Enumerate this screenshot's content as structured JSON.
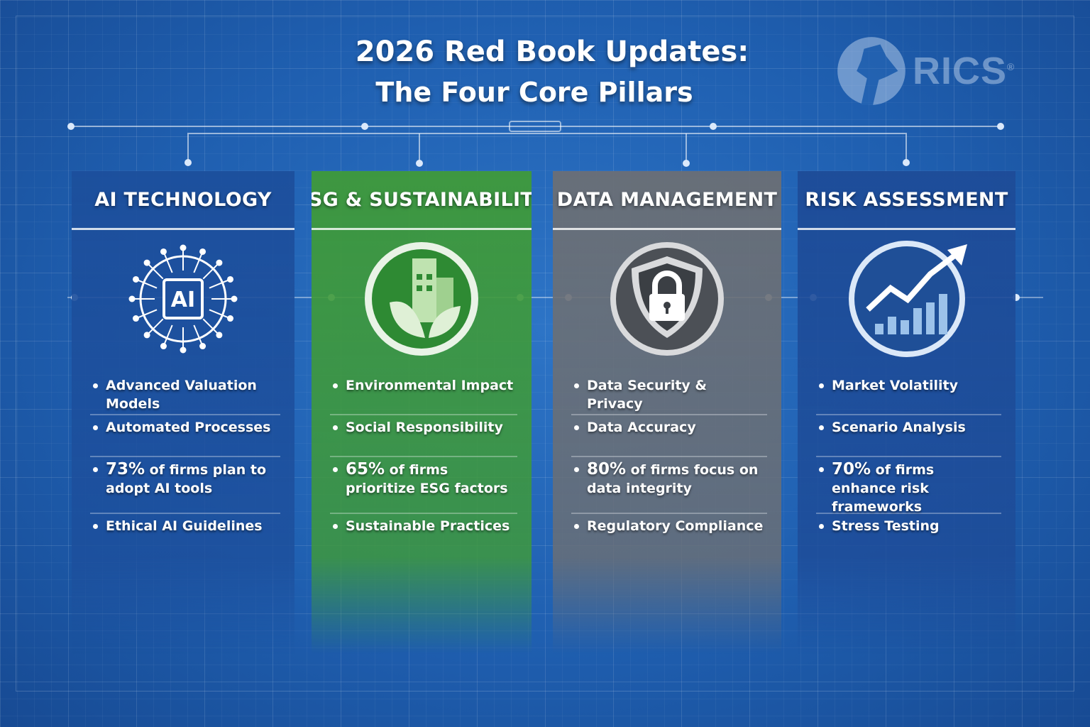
{
  "title": {
    "line1": "2026 Red Book Updates:",
    "line2": "The Four Core Pillars"
  },
  "logo": {
    "text": "RICS",
    "mark": "®"
  },
  "pillars": [
    {
      "header": "AI TECHNOLOGY",
      "icon": "ai-chip-icon",
      "color": "#1d4f9c",
      "items": [
        {
          "text": "Advanced Valuation Models"
        },
        {
          "text": "Automated Processes"
        },
        {
          "stat": "73%",
          "text": " of firms plan to adopt AI tools"
        },
        {
          "text": "Ethical AI Guidelines"
        }
      ]
    },
    {
      "header": "ESG & SUSTAINABILITY",
      "icon": "green-building-leaf-icon",
      "color": "#3f9a3a",
      "items": [
        {
          "text": "Environmental Impact"
        },
        {
          "text": "Social Responsibility"
        },
        {
          "stat": "65%",
          "text": " of firms prioritize ESG factors"
        },
        {
          "text": "Sustainable Practices"
        }
      ]
    },
    {
      "header": "DATA MANAGEMENT",
      "icon": "shield-lock-icon",
      "color": "#6b6f75",
      "items": [
        {
          "text": "Data Security & Privacy"
        },
        {
          "text": "Data Accuracy"
        },
        {
          "stat": "80%",
          "text": " of firms focus on data integrity"
        },
        {
          "text": "Regulatory Compliance"
        }
      ]
    },
    {
      "header": "RISK ASSESSMENT",
      "icon": "rising-chart-icon",
      "color": "#1e4c98",
      "items": [
        {
          "text": "Market Volatility"
        },
        {
          "text": "Scenario Analysis"
        },
        {
          "stat": "70%",
          "text": " of firms enhance risk frameworks"
        },
        {
          "text": "Stress Testing"
        }
      ]
    }
  ]
}
